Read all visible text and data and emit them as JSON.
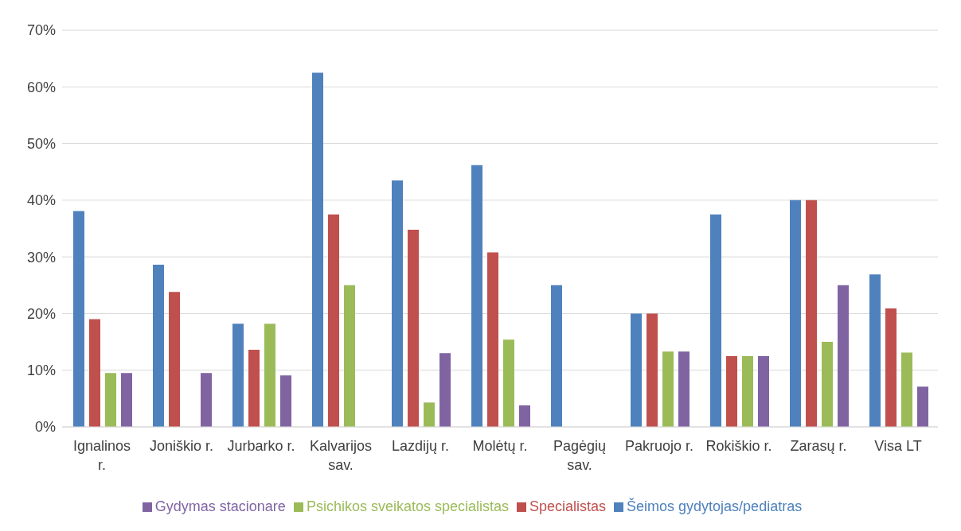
{
  "chart_data": {
    "type": "bar",
    "categories": [
      "Ignalinos r.",
      "Joniškio r.",
      "Jurbarko r.",
      "Kalvarijos sav.",
      "Lazdijų r.",
      "Molėtų r.",
      "Pagėgių sav.",
      "Pakruojo r.",
      "Rokiškio r.",
      "Zarasų r.",
      "Visa LT"
    ],
    "series": [
      {
        "name": "Šeimos gydytojas/pediatras",
        "color": "#4f81bd",
        "values": [
          38.1,
          28.6,
          18.2,
          62.5,
          43.5,
          46.2,
          25,
          20,
          37.5,
          40,
          26.9
        ]
      },
      {
        "name": "Specialistas",
        "color": "#c0504d",
        "values": [
          19,
          23.8,
          13.6,
          37.5,
          34.8,
          30.8,
          0,
          20,
          12.5,
          40,
          20.9
        ]
      },
      {
        "name": "Psichikos sveikatos specialistas",
        "color": "#9bbb59",
        "values": [
          9.5,
          0,
          18.2,
          25,
          4.3,
          15.4,
          0,
          13.3,
          12.5,
          15,
          13.1
        ]
      },
      {
        "name": "Gydymas stacionare",
        "color": "#8064a2",
        "values": [
          9.5,
          9.5,
          9.1,
          0,
          13,
          3.8,
          0,
          13.3,
          12.5,
          25,
          7.1
        ]
      }
    ],
    "ylim": [
      0,
      70
    ],
    "yticks": [
      {
        "value": 0,
        "label": "0%"
      },
      {
        "value": 10,
        "label": "10%"
      },
      {
        "value": 20,
        "label": "20%"
      },
      {
        "value": 30,
        "label": "30%"
      },
      {
        "value": 40,
        "label": "40%"
      },
      {
        "value": 50,
        "label": "50%"
      },
      {
        "value": 60,
        "label": "60%"
      },
      {
        "value": 70,
        "label": "70%"
      }
    ],
    "grid": "y",
    "legend": "bottom"
  }
}
